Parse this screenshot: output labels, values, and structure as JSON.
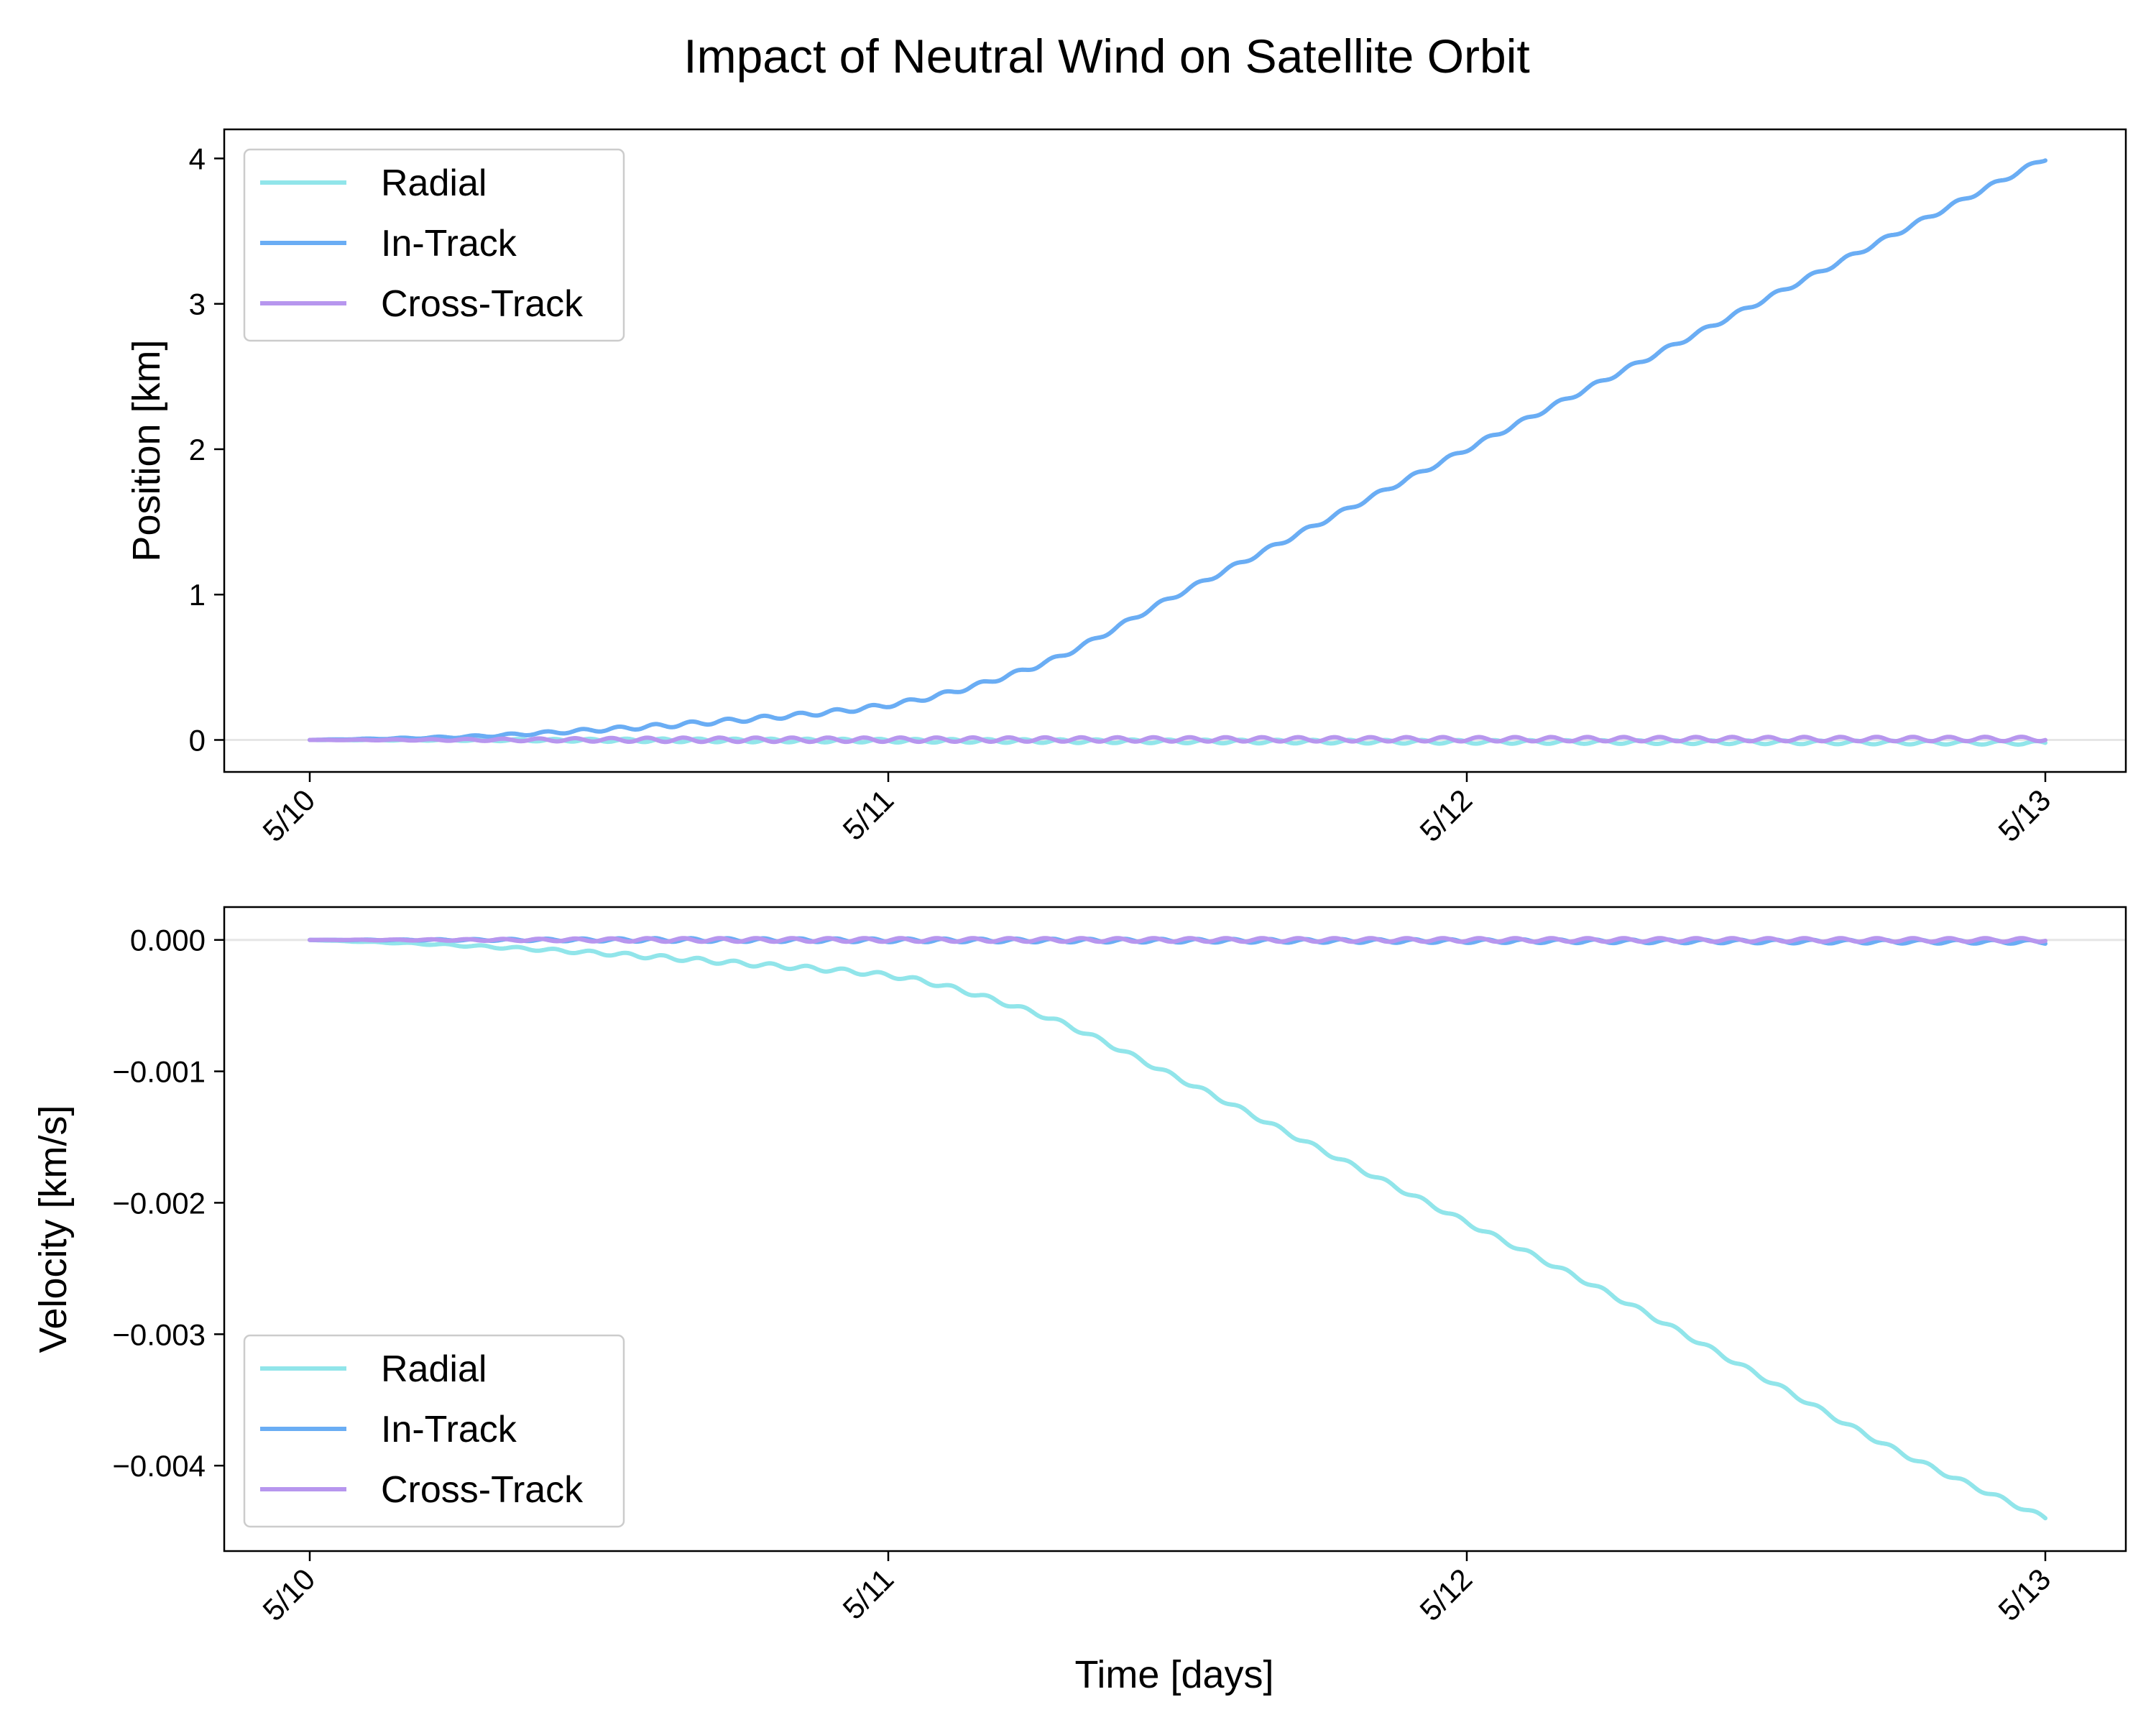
{
  "figure": {
    "title": "Impact of Neutral Wind on Satellite Orbit",
    "xlabel": "Time [days]"
  },
  "colors": {
    "radial": "#91E5EA",
    "in_track": "#6AADF4",
    "cross_track": "#B796EE",
    "zero_line": "#E6E6E6"
  },
  "chart_data": [
    {
      "type": "line",
      "name": "position",
      "ylabel": "Position [km]",
      "x_unit": "days",
      "xlim": [
        "5/9 ~21:00",
        "5/13 ~03:00"
      ],
      "ylim": [
        -0.22,
        4.2
      ],
      "x_ticks": [
        "5/10",
        "5/11",
        "5/12",
        "5/13"
      ],
      "y_ticks": [
        "0",
        "1",
        "2",
        "3",
        "4"
      ],
      "y_tick_values": [
        0,
        1,
        2,
        3,
        4
      ],
      "zero_line": true,
      "grid": false,
      "legend": {
        "position": "upper-left",
        "entries": [
          "Radial",
          "In-Track",
          "Cross-Track"
        ]
      },
      "orbit_oscillation": "small periodic ripple, ~16 orbits per day",
      "series": [
        {
          "name": "Radial",
          "color_key": "radial",
          "x": [
            "5/10",
            "5/10 12:00",
            "5/11",
            "5/11 12:00",
            "5/12",
            "5/12 12:00",
            "5/13"
          ],
          "values": [
            0,
            -0.002,
            -0.005,
            -0.01,
            -0.013,
            -0.016,
            -0.02
          ]
        },
        {
          "name": "In-Track",
          "color_key": "in_track",
          "x": [
            "5/10",
            "5/10 06:00",
            "5/10 12:00",
            "5/10 18:00",
            "5/11",
            "5/11 06:00",
            "5/11 12:00",
            "5/11 18:00",
            "5/12",
            "5/12 06:00",
            "5/12 12:00",
            "5/12 18:00",
            "5/13"
          ],
          "values": [
            0,
            0.02,
            0.07,
            0.14,
            0.24,
            0.5,
            1.0,
            1.5,
            2.0,
            2.5,
            3.0,
            3.5,
            4.0
          ]
        },
        {
          "name": "Cross-Track",
          "color_key": "cross_track",
          "x": [
            "5/10",
            "5/10 12:00",
            "5/11",
            "5/11 12:00",
            "5/12",
            "5/12 12:00",
            "5/13"
          ],
          "values": [
            0,
            0.001,
            0.002,
            0.004,
            0.005,
            0.006,
            0.007
          ]
        }
      ]
    },
    {
      "type": "line",
      "name": "velocity",
      "ylabel": "Velocity [km/s]",
      "x_unit": "days",
      "xlim": [
        "5/9 ~21:00",
        "5/13 ~03:00"
      ],
      "ylim": [
        -0.00465,
        0.00025
      ],
      "x_ticks": [
        "5/10",
        "5/11",
        "5/12",
        "5/13"
      ],
      "y_ticks": [
        "0.000",
        "−0.001",
        "−0.002",
        "−0.003",
        "−0.004"
      ],
      "y_tick_values": [
        0,
        -0.001,
        -0.002,
        -0.003,
        -0.004
      ],
      "zero_line": true,
      "grid": false,
      "legend": {
        "position": "lower-left",
        "entries": [
          "Radial",
          "In-Track",
          "Cross-Track"
        ]
      },
      "orbit_oscillation": "small periodic ripple, ~16 orbits per day",
      "series": [
        {
          "name": "Radial",
          "color_key": "radial",
          "x": [
            "5/10",
            "5/10 06:00",
            "5/10 12:00",
            "5/10 18:00",
            "5/11",
            "5/11 06:00",
            "5/11 12:00",
            "5/11 18:00",
            "5/12",
            "5/12 06:00",
            "5/12 12:00",
            "5/12 18:00",
            "5/13"
          ],
          "values": [
            0,
            -4e-05,
            -0.0001,
            -0.00018,
            -0.00027,
            -0.00055,
            -0.00105,
            -0.0016,
            -0.00215,
            -0.0027,
            -0.0033,
            -0.0039,
            -0.0044
          ]
        },
        {
          "name": "In-Track",
          "color_key": "in_track",
          "x": [
            "5/10",
            "5/10 12:00",
            "5/11",
            "5/11 12:00",
            "5/12",
            "5/12 12:00",
            "5/13"
          ],
          "values": [
            0,
            0,
            -3e-06,
            -6e-06,
            -9e-06,
            -1.2e-05,
            -1.5e-05
          ]
        },
        {
          "name": "Cross-Track",
          "color_key": "cross_track",
          "x": [
            "5/10",
            "5/10 12:00",
            "5/11",
            "5/11 12:00",
            "5/12",
            "5/12 12:00",
            "5/13"
          ],
          "values": [
            0,
            0,
            0,
            0,
            0,
            0,
            0
          ]
        }
      ]
    }
  ]
}
